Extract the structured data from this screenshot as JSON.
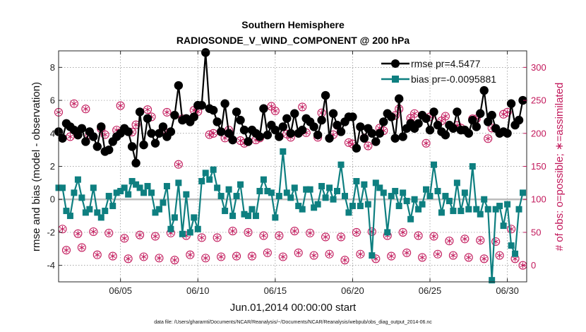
{
  "title_line1": "Southern Hemisphere",
  "title_line2": "RADIOSONDE_V_WIND_COMPONENT @ 200 hPa",
  "xlabel": "Jun.01,2014 00:00:00 start",
  "ylabel_left": "rmse and bias (model - observation)",
  "ylabel_right": "# of obs: o=possible; ∗=assimilated",
  "footnote": "data file: /Users/gharamti/Documents/NCAR/Reanalysis/~/Documents/NCAR/Reanalysis/webpub/obs_diag_output_2014-06.nc",
  "legend": {
    "rmse": "rmse pr=4.5477",
    "bias": "bias pr=-0.0095881"
  },
  "colors": {
    "rmse": "#000000",
    "bias": "#0e7f80",
    "obs": "#c2185b",
    "zero_line": "#bdbdbd"
  },
  "chart_data": {
    "type": "line",
    "x_unit": "day of June 2014 (1 = Jun 1 00Z), 6-hourly",
    "x_ticks": [
      {
        "x": 5,
        "label": "06/05"
      },
      {
        "x": 10,
        "label": "06/10"
      },
      {
        "x": 15,
        "label": "06/15"
      },
      {
        "x": 20,
        "label": "06/20"
      },
      {
        "x": 25,
        "label": "06/25"
      },
      {
        "x": 30,
        "label": "06/30"
      }
    ],
    "xlim": [
      1,
      31.25
    ],
    "ylim_left": [
      -5,
      9
    ],
    "yticks_left": [
      "-4",
      "-2",
      "0",
      "2",
      "4",
      "6",
      "8"
    ],
    "ylim_right": [
      -25,
      325
    ],
    "yticks_right": [
      "0",
      "50",
      "100",
      "150",
      "200",
      "250",
      "300"
    ],
    "grid": true,
    "legend_position": "top-right",
    "series": [
      {
        "name": "rmse pr=4.5477",
        "axis": "left",
        "x": [
          1.0,
          1.25,
          1.5,
          1.75,
          2.0,
          2.25,
          2.5,
          2.75,
          3.0,
          3.25,
          3.5,
          3.75,
          4.0,
          4.25,
          4.5,
          4.75,
          5.0,
          5.25,
          5.5,
          5.75,
          6.0,
          6.25,
          6.5,
          6.75,
          7.0,
          7.25,
          7.5,
          7.75,
          8.0,
          8.25,
          8.5,
          8.75,
          9.0,
          9.25,
          9.5,
          9.75,
          10.0,
          10.25,
          10.5,
          10.75,
          11.0,
          11.25,
          11.5,
          11.75,
          12.0,
          12.25,
          12.5,
          12.75,
          13.0,
          13.25,
          13.5,
          13.75,
          14.0,
          14.25,
          14.5,
          14.75,
          15.0,
          15.25,
          15.5,
          15.75,
          16.0,
          16.25,
          16.5,
          16.75,
          17.0,
          17.25,
          17.5,
          17.75,
          18.0,
          18.25,
          18.5,
          18.75,
          19.0,
          19.25,
          19.5,
          19.75,
          20.0,
          20.25,
          20.5,
          20.75,
          21.0,
          21.25,
          21.5,
          21.75,
          22.0,
          22.25,
          22.5,
          22.75,
          23.0,
          23.25,
          23.5,
          23.75,
          24.0,
          24.25,
          24.5,
          24.75,
          25.0,
          25.25,
          25.5,
          25.75,
          26.0,
          26.25,
          26.5,
          26.75,
          27.0,
          27.25,
          27.5,
          27.75,
          28.0,
          28.25,
          28.5,
          28.75,
          29.0,
          29.25,
          29.5,
          29.75,
          30.0,
          30.25,
          30.5,
          30.75,
          31.0
        ],
        "y": [
          4.1,
          3.7,
          4.6,
          4.4,
          4.2,
          3.9,
          4.3,
          3.5,
          4.1,
          3.8,
          3.2,
          4.4,
          2.9,
          3.0,
          3.5,
          3.8,
          4.0,
          4.3,
          4.1,
          3.2,
          2.2,
          5.3,
          3.3,
          4.9,
          4.0,
          3.4,
          4.0,
          4.4,
          3.8,
          4.1,
          5.1,
          6.9,
          4.8,
          4.9,
          4.7,
          5.0,
          5.7,
          5.7,
          8.9,
          5.5,
          5.4,
          4.7,
          4.1,
          5.8,
          4.0,
          3.6,
          5.3,
          4.8,
          4.2,
          3.5,
          4.2,
          4.0,
          3.8,
          5.5,
          3.9,
          4.5,
          4.2,
          3.8,
          4.4,
          4.9,
          4.0,
          5.2,
          4.0,
          4.2,
          4.9,
          4.7,
          4.4,
          3.9,
          4.8,
          6.3,
          3.7,
          5.2,
          4.5,
          4.1,
          4.7,
          5.0,
          5.0,
          3.1,
          4.4,
          3.7,
          4.3,
          4.0,
          3.5,
          4.0,
          4.7,
          5.2,
          5.0,
          3.7,
          6.1,
          3.8,
          4.3,
          4.6,
          4.3,
          4.6,
          5.1,
          4.9,
          4.2,
          5.3,
          4.5,
          4.1,
          3.9,
          4.5,
          4.3,
          5.3,
          4.2,
          4.2,
          4.0,
          4.8,
          4.4,
          5.2,
          6.6,
          4.7,
          5.1,
          4.3,
          4.0,
          4.1,
          4.0,
          5.8,
          4.5,
          4.8,
          6.0
        ]
      },
      {
        "name": "bias pr=-0.0095881",
        "axis": "left",
        "x": [
          1.0,
          1.25,
          1.5,
          1.75,
          2.0,
          2.25,
          2.5,
          2.75,
          3.0,
          3.25,
          3.5,
          3.75,
          4.0,
          4.25,
          4.5,
          4.75,
          5.0,
          5.25,
          5.5,
          5.75,
          6.0,
          6.25,
          6.5,
          6.75,
          7.0,
          7.25,
          7.5,
          7.75,
          8.0,
          8.25,
          8.5,
          8.75,
          9.0,
          9.25,
          9.5,
          9.75,
          10.0,
          10.25,
          10.5,
          10.75,
          11.0,
          11.25,
          11.5,
          11.75,
          12.0,
          12.25,
          12.5,
          12.75,
          13.0,
          13.25,
          13.5,
          13.75,
          14.0,
          14.25,
          14.5,
          14.75,
          15.0,
          15.25,
          15.5,
          15.75,
          16.0,
          16.25,
          16.5,
          16.75,
          17.0,
          17.25,
          17.5,
          17.75,
          18.0,
          18.25,
          18.5,
          18.75,
          19.0,
          19.25,
          19.5,
          19.75,
          20.0,
          20.25,
          20.5,
          20.75,
          21.0,
          21.25,
          21.5,
          21.75,
          22.0,
          22.25,
          22.5,
          22.75,
          23.0,
          23.25,
          23.5,
          23.75,
          24.0,
          24.25,
          24.5,
          24.75,
          25.0,
          25.25,
          25.5,
          25.75,
          26.0,
          26.25,
          26.5,
          26.75,
          27.0,
          27.25,
          27.5,
          27.75,
          28.0,
          28.25,
          28.5,
          28.75,
          29.0,
          29.25,
          29.5,
          29.75,
          30.0,
          30.25,
          30.5,
          30.75,
          31.0
        ],
        "y": [
          0.7,
          0.7,
          -0.7,
          -1.0,
          0.4,
          1.2,
          0.1,
          -0.8,
          -0.6,
          0.7,
          -0.8,
          -1.1,
          -0.7,
          0.2,
          -0.4,
          0.4,
          0.5,
          0.7,
          0.3,
          1.1,
          0.9,
          0.7,
          0.4,
          0.8,
          0.4,
          -0.8,
          -0.6,
          -0.2,
          0.8,
          -1.8,
          -1.1,
          1.0,
          -2.1,
          0.3,
          -2.0,
          -1.1,
          -1.8,
          1.1,
          1.6,
          1.2,
          1.8,
          0.7,
          0.2,
          -0.7,
          0.6,
          -1.0,
          0.2,
          0.9,
          -0.9,
          -1.0,
          -0.6,
          -1.0,
          0.5,
          1.2,
          0.5,
          0.4,
          -1.1,
          0.2,
          2.9,
          0.4,
          0.1,
          0.7,
          -0.4,
          -0.6,
          0.6,
          0.6,
          -0.5,
          -0.3,
          0.8,
          0.1,
          0.7,
          0.0,
          0.5,
          2.1,
          0.2,
          -0.8,
          -0.4,
          1.1,
          -0.4,
          0.9,
          -0.3,
          -3.4,
          1.0,
          0.7,
          0.4,
          -2.0,
          0.2,
          0.5,
          -0.4,
          0.4,
          -0.1,
          -1.2,
          0.0,
          -0.6,
          -0.3,
          0.6,
          0.2,
          2.1,
          0.5,
          -0.8,
          0.2,
          -0.1,
          -0.7,
          1.0,
          -0.7,
          0.4,
          -0.6,
          2.0,
          -0.6,
          -0.9,
          0.0,
          -0.6,
          -4.9,
          -0.6,
          -0.4,
          -1.6,
          -0.3,
          -2.8,
          -3.3,
          -0.6,
          0.4
        ]
      },
      {
        "name": "",
        "kind": "obs_possible",
        "axis": "right",
        "x": [
          1.0,
          1.25,
          1.5,
          1.75,
          2.0,
          2.25,
          2.5,
          2.75,
          3.0,
          3.25,
          3.5,
          3.75,
          4.0,
          4.25,
          4.5,
          4.75,
          5.0,
          5.25,
          5.5,
          5.75,
          6.0,
          6.25,
          6.5,
          6.75,
          7.0,
          7.25,
          7.5,
          7.75,
          8.0,
          8.25,
          8.5,
          8.75,
          9.0,
          9.25,
          9.5,
          9.75,
          10.0,
          10.25,
          10.5,
          10.75,
          11.0,
          11.25,
          11.5,
          11.75,
          12.0,
          12.25,
          12.5,
          12.75,
          13.0,
          13.25,
          13.5,
          13.75,
          14.0,
          14.25,
          14.5,
          14.75,
          15.0,
          15.25,
          15.5,
          15.75,
          16.0,
          16.25,
          16.5,
          16.75,
          17.0,
          17.25,
          17.5,
          17.75,
          18.0,
          18.25,
          18.5,
          18.75,
          19.0,
          19.25,
          19.5,
          19.75,
          20.0,
          20.25,
          20.5,
          20.75,
          21.0,
          21.25,
          21.5,
          21.75,
          22.0,
          22.25,
          22.5,
          22.75,
          23.0,
          23.25,
          23.5,
          23.75,
          24.0,
          24.25,
          24.5,
          24.75,
          25.0,
          25.25,
          25.5,
          25.75,
          26.0,
          26.25,
          26.5,
          26.75,
          27.0,
          27.25,
          27.5,
          27.75,
          28.0,
          28.25,
          28.5,
          28.75,
          29.0,
          29.25,
          29.5,
          29.75,
          30.0,
          30.25,
          30.5,
          30.75,
          31.0
        ],
        "y": [
          232,
          55,
          23,
          195,
          245,
          48,
          27,
          237,
          198,
          51,
          16,
          207,
          198,
          49,
          14,
          205,
          242,
          41,
          10,
          202,
          213,
          46,
          13,
          236,
          225,
          44,
          11,
          206,
          232,
          49,
          8,
          153,
          222,
          45,
          16,
          235,
          233,
          42,
          11,
          198,
          200,
          42,
          13,
          193,
          205,
          52,
          14,
          189,
          185,
          50,
          14,
          190,
          193,
          45,
          19,
          241,
          234,
          45,
          13,
          199,
          194,
          52,
          19,
          240,
          201,
          49,
          15,
          194,
          231,
          43,
          17,
          198,
          212,
          43,
          8,
          186,
          184,
          50,
          17,
          193,
          181,
          51,
          10,
          208,
          204,
          45,
          14,
          227,
          237,
          50,
          19,
          223,
          230,
          45,
          12,
          185,
          225,
          44,
          17,
          219,
          226,
          37,
          15,
          212,
          208,
          40,
          12,
          222,
          222,
          38,
          10,
          192,
          208,
          36,
          15,
          229,
          232,
          55,
          10,
          220,
          0
        ]
      },
      {
        "name": "",
        "kind": "obs_assimilated",
        "axis": "right",
        "x": [
          1.0,
          1.25,
          1.5,
          1.75,
          2.0,
          2.25,
          2.5,
          2.75,
          3.0,
          3.25,
          3.5,
          3.75,
          4.0,
          4.25,
          4.5,
          4.75,
          5.0,
          5.25,
          5.5,
          5.75,
          6.0,
          6.25,
          6.5,
          6.75,
          7.0,
          7.25,
          7.5,
          7.75,
          8.0,
          8.25,
          8.5,
          8.75,
          9.0,
          9.25,
          9.5,
          9.75,
          10.0,
          10.25,
          10.5,
          10.75,
          11.0,
          11.25,
          11.5,
          11.75,
          12.0,
          12.25,
          12.5,
          12.75,
          13.0,
          13.25,
          13.5,
          13.75,
          14.0,
          14.25,
          14.5,
          14.75,
          15.0,
          15.25,
          15.5,
          15.75,
          16.0,
          16.25,
          16.5,
          16.75,
          17.0,
          17.25,
          17.5,
          17.75,
          18.0,
          18.25,
          18.5,
          18.75,
          19.0,
          19.25,
          19.5,
          19.75,
          20.0,
          20.25,
          20.5,
          20.75,
          21.0,
          21.25,
          21.5,
          21.75,
          22.0,
          22.25,
          22.5,
          22.75,
          23.0,
          23.25,
          23.5,
          23.75,
          24.0,
          24.25,
          24.5,
          24.75,
          25.0,
          25.25,
          25.5,
          25.75,
          26.0,
          26.25,
          26.5,
          26.75,
          27.0,
          27.25,
          27.5,
          27.75,
          28.0,
          28.25,
          28.5,
          28.75,
          29.0,
          29.25,
          29.5,
          29.75,
          30.0,
          30.25,
          30.5,
          30.75,
          31.0
        ],
        "y": [
          232,
          55,
          23,
          195,
          245,
          48,
          27,
          237,
          198,
          51,
          16,
          207,
          198,
          49,
          14,
          205,
          242,
          41,
          10,
          202,
          213,
          46,
          13,
          236,
          225,
          44,
          11,
          206,
          232,
          49,
          8,
          153,
          222,
          45,
          16,
          235,
          233,
          42,
          11,
          198,
          200,
          42,
          13,
          193,
          205,
          52,
          14,
          189,
          185,
          50,
          14,
          190,
          193,
          45,
          19,
          241,
          234,
          45,
          13,
          199,
          194,
          52,
          19,
          240,
          201,
          49,
          15,
          194,
          231,
          43,
          17,
          198,
          212,
          43,
          8,
          186,
          184,
          50,
          17,
          193,
          181,
          51,
          10,
          208,
          204,
          45,
          14,
          227,
          237,
          50,
          19,
          223,
          230,
          45,
          12,
          185,
          225,
          44,
          17,
          219,
          226,
          37,
          15,
          212,
          208,
          40,
          12,
          222,
          222,
          38,
          10,
          192,
          208,
          36,
          15,
          229,
          232,
          55,
          10,
          220,
          0
        ]
      }
    ]
  }
}
